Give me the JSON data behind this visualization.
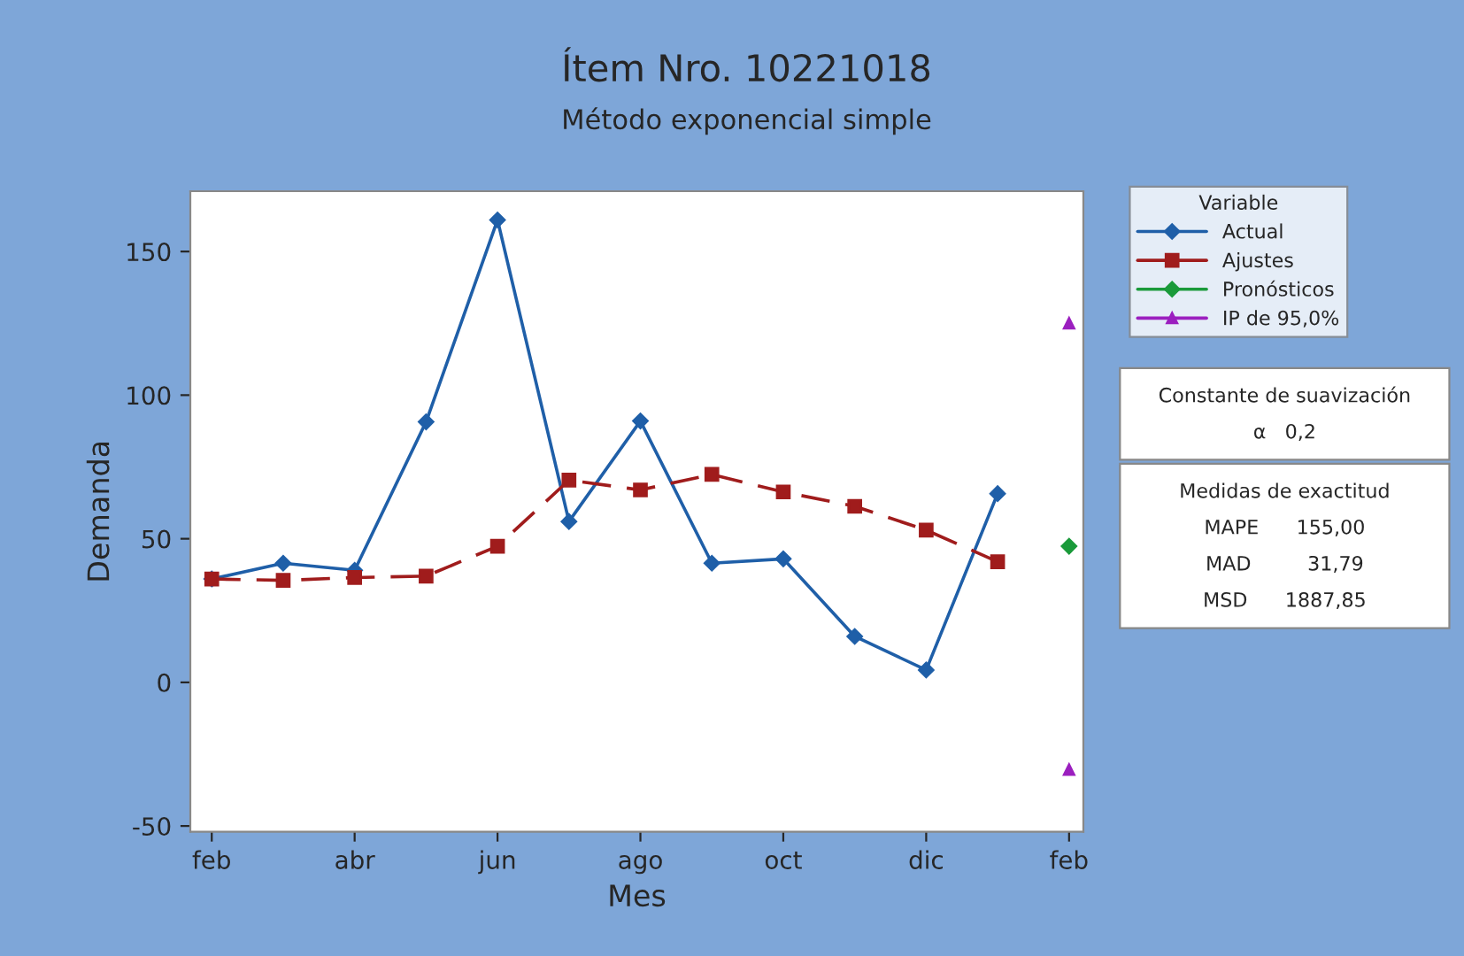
{
  "chart_data": {
    "type": "line",
    "title": "Ítem Nro. 10221018",
    "subtitle": "Método exponencial simple",
    "xlabel": "Mes",
    "ylabel": "Demanda",
    "legend_title": "Variable",
    "categories": [
      "feb",
      null,
      "abr",
      null,
      "jun",
      null,
      "ago",
      null,
      "oct",
      null,
      "dic",
      null,
      "feb"
    ],
    "series": [
      {
        "name": "Actual",
        "color": "#1f5fa8",
        "marker": "diamond",
        "line_style": "solid",
        "values": [
          36,
          41.5,
          39,
          90.7,
          161,
          56,
          91,
          41.5,
          43,
          16,
          4.3,
          65.7,
          null
        ]
      },
      {
        "name": "Ajustes",
        "color": "#a01c1c",
        "marker": "square",
        "line_style": "dashed",
        "values": [
          36,
          35.5,
          36.5,
          37,
          47.4,
          70.4,
          67,
          72.4,
          66.3,
          61.3,
          53,
          42,
          null
        ]
      },
      {
        "name": "Pronósticos",
        "color": "#1a9a3a",
        "marker": "diamond",
        "line_style": "solid",
        "values": [
          null,
          null,
          null,
          null,
          null,
          null,
          null,
          null,
          null,
          null,
          null,
          null,
          47.4
        ]
      },
      {
        "name": "IP de 95,0%",
        "color": "#9b1fbf",
        "marker": "triangle",
        "line_style": "solid",
        "values": [
          null,
          null,
          null,
          null,
          null,
          null,
          null,
          null,
          null,
          null,
          null,
          null,
          125
        ]
      },
      {
        "color": "#9b1fbf",
        "marker": "triangle",
        "line_style": "solid",
        "values": [
          null,
          null,
          null,
          null,
          null,
          null,
          null,
          null,
          null,
          null,
          null,
          null,
          -30.4
        ]
      }
    ],
    "ylim": [
      -52,
      171
    ],
    "yticks": [
      -50,
      0,
      50,
      100,
      150
    ],
    "grid": false,
    "legend": "right",
    "annotations": [
      "Constante de suavización",
      "α   0,2",
      "Medidas de exactitud",
      "MAPE      155,00",
      "MAD         31,79",
      "MSD      1887,85"
    ]
  }
}
